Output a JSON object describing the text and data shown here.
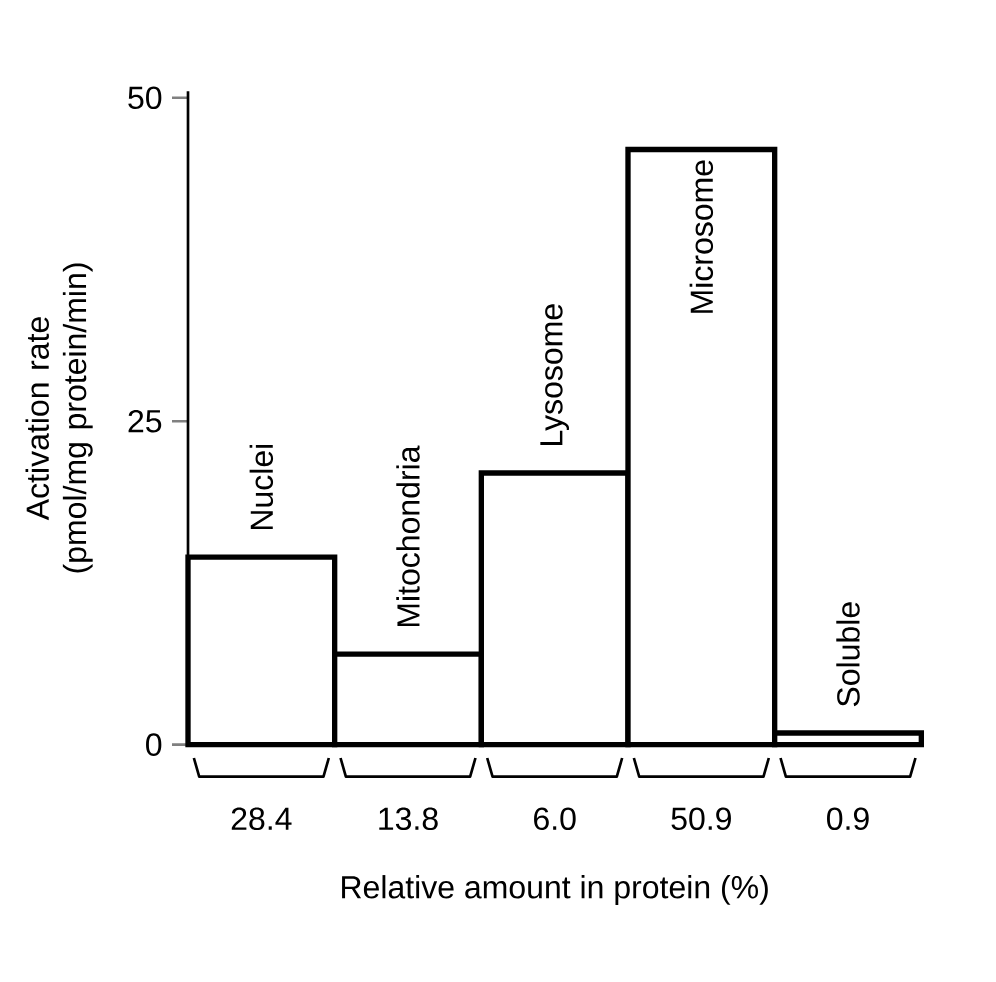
{
  "chart_data": {
    "type": "bar",
    "categories": [
      "28.4",
      "13.8",
      "6.0",
      "50.9",
      "0.9"
    ],
    "values": [
      14.5,
      7,
      21,
      46,
      0.9
    ],
    "color": "#000000",
    "ylim": [
      0,
      50.5
    ],
    "yticks": [
      0,
      25,
      50
    ],
    "xlabel": "Relative amount in protein (%)",
    "ylabel": "Activation rate (pmol/mg protein/min)",
    "annotations": [
      {
        "text": "Nuclei",
        "x": "28.4",
        "y": 14.5
      },
      {
        "text": "Mitochondria",
        "x": "13.8",
        "y": 7
      },
      {
        "text": "Lysosome",
        "x": "6.0",
        "y": 21
      },
      {
        "text": "Microsome",
        "x": "50.9",
        "y": 46
      },
      {
        "text": "Soluble",
        "x": "0.9",
        "y": 0.9
      }
    ]
  }
}
